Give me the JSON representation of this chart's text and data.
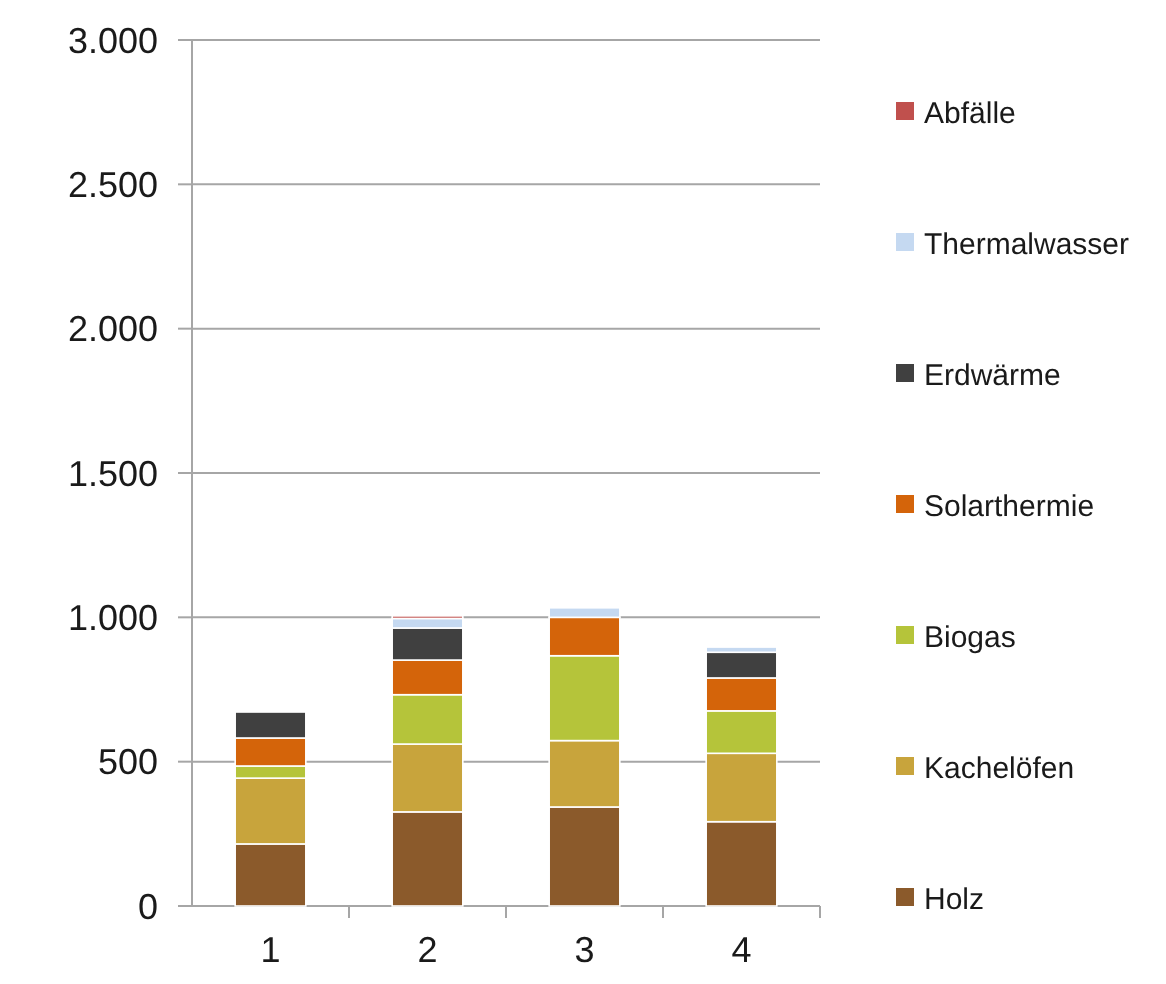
{
  "chart_data": {
    "type": "bar",
    "stacked": true,
    "categories": [
      "1",
      "2",
      "3",
      "4"
    ],
    "ylim": [
      0,
      3000
    ],
    "yticks": [
      {
        "value": 0,
        "label": "0"
      },
      {
        "value": 500,
        "label": "500"
      },
      {
        "value": 1000,
        "label": "1.000"
      },
      {
        "value": 1500,
        "label": "1.500"
      },
      {
        "value": 2000,
        "label": "2.000"
      },
      {
        "value": 2500,
        "label": "2.500"
      },
      {
        "value": 3000,
        "label": "3.000"
      }
    ],
    "grid": "y",
    "legend": "right",
    "series": [
      {
        "name": "Holz",
        "color": "#8b5a2b",
        "values": [
          215,
          326,
          343,
          292
        ]
      },
      {
        "name": "Kachelöfen",
        "color": "#c8a43c",
        "values": [
          228,
          235,
          230,
          237
        ]
      },
      {
        "name": "Biogas",
        "color": "#b5c43a",
        "values": [
          42,
          171,
          294,
          147
        ]
      },
      {
        "name": "Solarthermie",
        "color": "#d4640a",
        "values": [
          97,
          120,
          133,
          114
        ]
      },
      {
        "name": "Erdwärme",
        "color": "#404040",
        "values": [
          90,
          111,
          0,
          89
        ]
      },
      {
        "name": "Thermalwasser",
        "color": "#c5d9f1",
        "values": [
          0,
          33,
          33,
          18
        ]
      },
      {
        "name": "Abfälle",
        "color": "#c0504d",
        "values": [
          0,
          9,
          0,
          0
        ]
      }
    ]
  }
}
